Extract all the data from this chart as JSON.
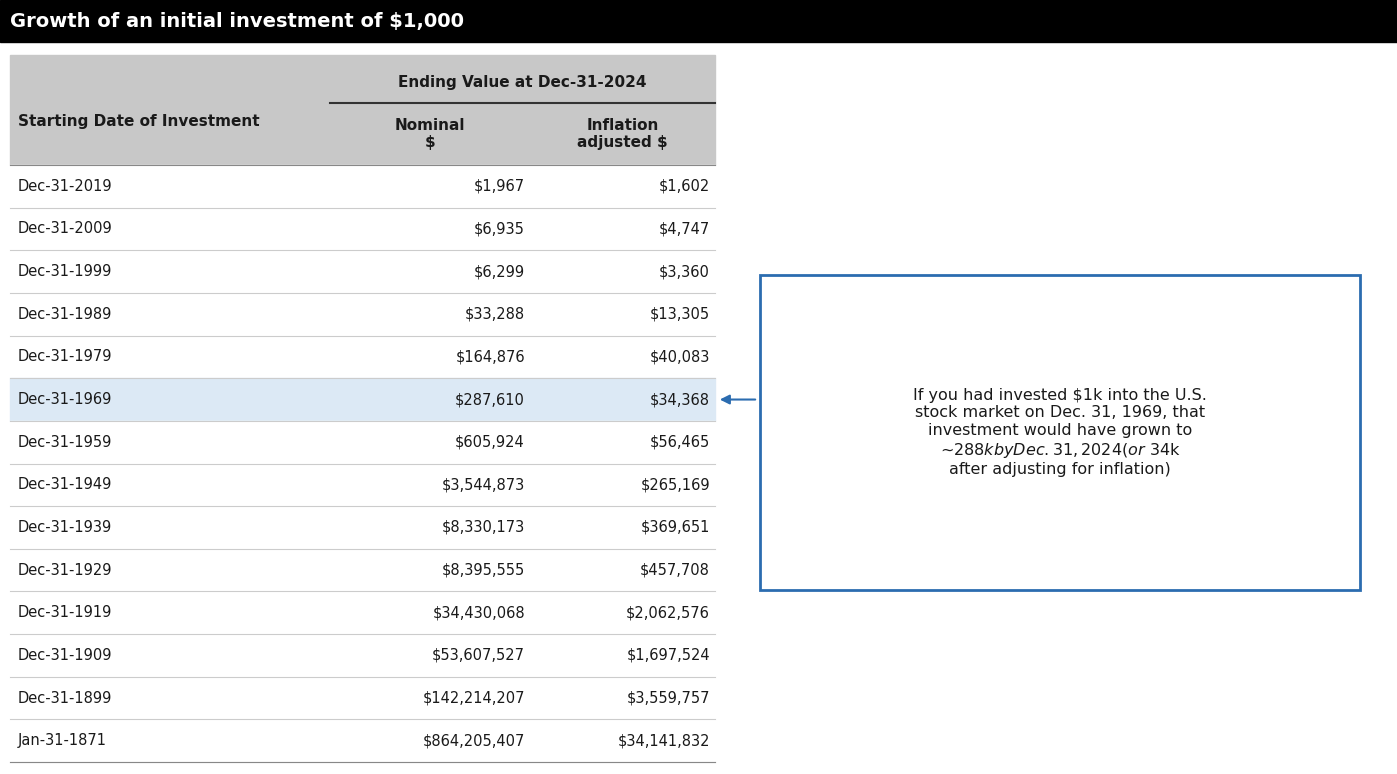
{
  "title": "Growth of an initial investment of $1,000",
  "title_bg": "#000000",
  "title_color": "#ffffff",
  "header_bg": "#c8c8c8",
  "subheader": "Ending Value at Dec-31-2024",
  "col1_header": "Starting Date of Investment",
  "col2_header": "Nominal\n$",
  "col3_header": "Inflation\nadjusted $",
  "highlight_row": "Dec-31-1969",
  "highlight_bg": "#dce9f5",
  "rows": [
    [
      "Dec-31-2019",
      "$1,967",
      "$1,602"
    ],
    [
      "Dec-31-2009",
      "$6,935",
      "$4,747"
    ],
    [
      "Dec-31-1999",
      "$6,299",
      "$3,360"
    ],
    [
      "Dec-31-1989",
      "$33,288",
      "$13,305"
    ],
    [
      "Dec-31-1979",
      "$164,876",
      "$40,083"
    ],
    [
      "Dec-31-1969",
      "$287,610",
      "$34,368"
    ],
    [
      "Dec-31-1959",
      "$605,924",
      "$56,465"
    ],
    [
      "Dec-31-1949",
      "$3,544,873",
      "$265,169"
    ],
    [
      "Dec-31-1939",
      "$8,330,173",
      "$369,651"
    ],
    [
      "Dec-31-1929",
      "$8,395,555",
      "$457,708"
    ],
    [
      "Dec-31-1919",
      "$34,430,068",
      "$2,062,576"
    ],
    [
      "Dec-31-1909",
      "$53,607,527",
      "$1,697,524"
    ],
    [
      "Dec-31-1899",
      "$142,214,207",
      "$3,559,757"
    ],
    [
      "Jan-31-1871",
      "$864,205,407",
      "$34,141,832"
    ]
  ],
  "annotation_text": "If you had invested $1k into the U.S.\nstock market on Dec. 31, 1969, that\ninvestment would have grown to\n~$288k by Dec. 31, 2024 (or ~$34k\nafter adjusting for inflation)",
  "annotation_box_color": "#2b6cb0",
  "row_bg": "#ffffff",
  "separator_color": "#cccccc",
  "text_color": "#1a1a1a",
  "figsize": [
    13.97,
    7.74
  ],
  "dpi": 100
}
